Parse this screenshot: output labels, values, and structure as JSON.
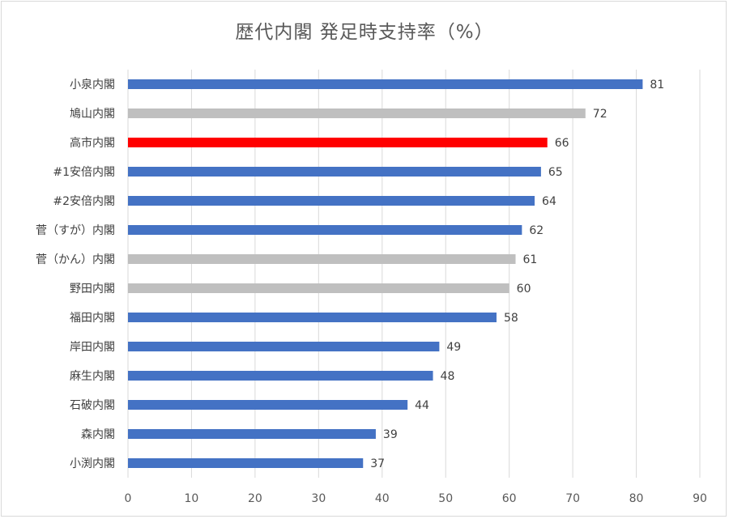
{
  "chart_data": {
    "type": "bar",
    "orientation": "horizontal",
    "title": "歴代内閣 発足時支持率（%）",
    "xlabel": "",
    "ylabel": "",
    "xlim": [
      0,
      90
    ],
    "x_ticks": [
      "0",
      "10",
      "20",
      "30",
      "40",
      "50",
      "60",
      "70",
      "80",
      "90"
    ],
    "grid": true,
    "data_labels": true,
    "categories": [
      "小泉内閣",
      "鳩山内閣",
      "高市内閣",
      "#1安倍内閣",
      "#2安倍内閣",
      "菅（すが）内閣",
      "菅（かん）内閣",
      "野田内閣",
      "福田内閣",
      "岸田内閣",
      "麻生内閣",
      "石破内閣",
      "森内閣",
      "小渕内閣"
    ],
    "values": [
      81,
      72,
      66,
      65,
      64,
      62,
      61,
      60,
      58,
      49,
      48,
      44,
      39,
      37
    ],
    "bar_colors": [
      "#4472c4",
      "#bfbfbf",
      "#ff0000",
      "#4472c4",
      "#4472c4",
      "#4472c4",
      "#bfbfbf",
      "#bfbfbf",
      "#4472c4",
      "#4472c4",
      "#4472c4",
      "#4472c4",
      "#4472c4",
      "#4472c4"
    ]
  }
}
